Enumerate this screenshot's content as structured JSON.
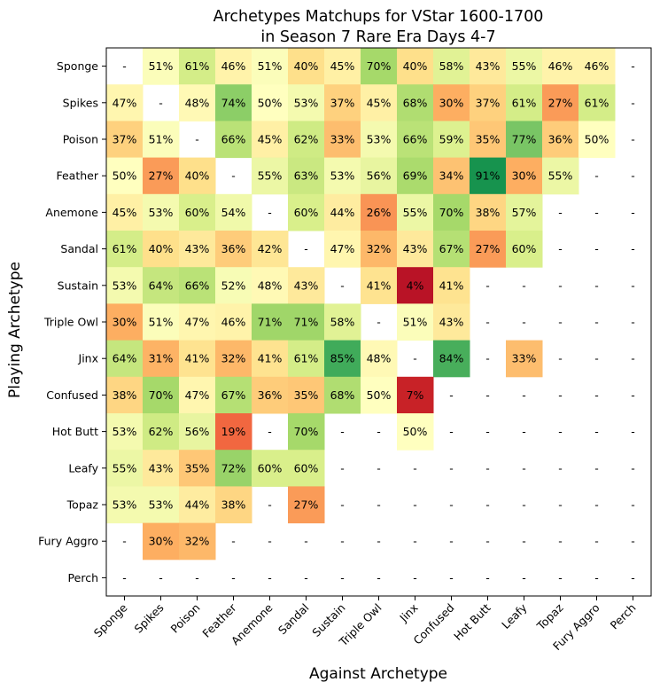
{
  "chart_data": {
    "type": "heatmap",
    "title": "Archetypes Matchups for VStar 1600-1700",
    "subtitle": "in Season 7 Rare Era Days 4-7",
    "xlabel": "Against Archetype",
    "ylabel": "Playing Archetype",
    "x_categories": [
      "Sponge",
      "Spikes",
      "Poison",
      "Feather",
      "Anemone",
      "Sandal",
      "Sustain",
      "Triple Owl",
      "Jinx",
      "Confused",
      "Hot Butt",
      "Leafy",
      "Topaz",
      "Fury Aggro",
      "Perch"
    ],
    "y_categories": [
      "Sponge",
      "Spikes",
      "Poison",
      "Feather",
      "Anemone",
      "Sandal",
      "Sustain",
      "Triple Owl",
      "Jinx",
      "Confused",
      "Hot Butt",
      "Leafy",
      "Topaz",
      "Fury Aggro",
      "Perch"
    ],
    "value_format": "percent",
    "missing_label": "-",
    "color_scale": "RdYlGn",
    "value_range": [
      0,
      100
    ],
    "values": [
      [
        null,
        51,
        61,
        46,
        51,
        40,
        45,
        70,
        40,
        58,
        43,
        55,
        46,
        46,
        null
      ],
      [
        47,
        null,
        48,
        74,
        50,
        53,
        37,
        45,
        68,
        30,
        37,
        61,
        27,
        61,
        null
      ],
      [
        37,
        51,
        null,
        66,
        45,
        62,
        33,
        53,
        66,
        59,
        35,
        77,
        36,
        50,
        null
      ],
      [
        50,
        27,
        40,
        null,
        55,
        63,
        53,
        56,
        69,
        34,
        91,
        30,
        55,
        null,
        null
      ],
      [
        45,
        53,
        60,
        54,
        null,
        60,
        44,
        26,
        55,
        70,
        38,
        57,
        null,
        null,
        null
      ],
      [
        61,
        40,
        43,
        36,
        42,
        null,
        47,
        32,
        43,
        67,
        27,
        60,
        null,
        null,
        null
      ],
      [
        53,
        64,
        66,
        52,
        48,
        43,
        null,
        41,
        4,
        41,
        null,
        null,
        null,
        null,
        null
      ],
      [
        30,
        51,
        47,
        46,
        71,
        71,
        58,
        null,
        51,
        43,
        null,
        null,
        null,
        null,
        null
      ],
      [
        64,
        31,
        41,
        32,
        41,
        61,
        85,
        48,
        null,
        84,
        null,
        33,
        null,
        null,
        null
      ],
      [
        38,
        70,
        47,
        67,
        36,
        35,
        68,
        50,
        7,
        null,
        null,
        null,
        null,
        null,
        null
      ],
      [
        53,
        62,
        56,
        19,
        null,
        70,
        null,
        null,
        50,
        null,
        null,
        null,
        null,
        null,
        null
      ],
      [
        55,
        43,
        35,
        72,
        60,
        60,
        null,
        null,
        null,
        null,
        null,
        null,
        null,
        null,
        null
      ],
      [
        53,
        53,
        44,
        38,
        null,
        27,
        null,
        null,
        null,
        null,
        null,
        null,
        null,
        null,
        null
      ],
      [
        null,
        30,
        32,
        null,
        null,
        null,
        null,
        null,
        null,
        null,
        null,
        null,
        null,
        null,
        null
      ],
      [
        null,
        null,
        null,
        null,
        null,
        null,
        null,
        null,
        null,
        null,
        null,
        null,
        null,
        null,
        null
      ]
    ]
  }
}
